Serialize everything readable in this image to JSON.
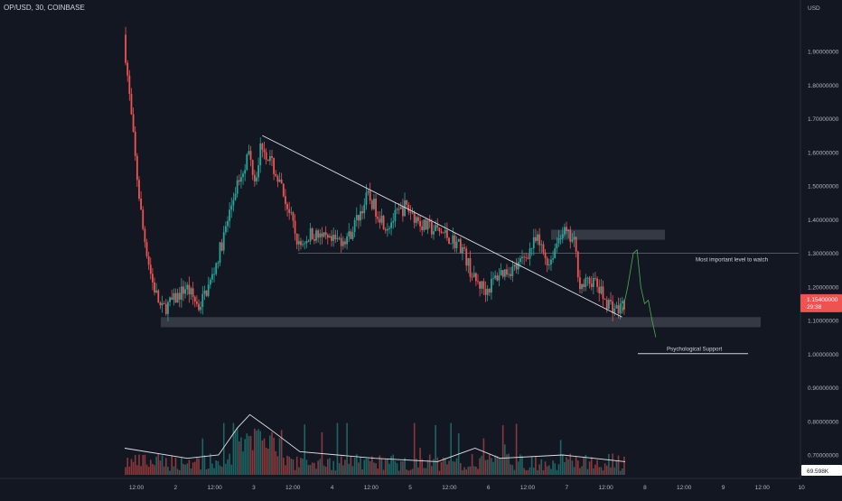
{
  "header": {
    "symbol_title": "OP/USD, 30, COINBASE"
  },
  "colors": {
    "background": "#131722",
    "up": "#26a69a",
    "down": "#ef5350",
    "axis_text": "#b2b5be",
    "trendline": "#e0e3eb",
    "zone": "#3b3f4a",
    "ma_line": "#e0e3eb",
    "projection": "#4caf50"
  },
  "price_axis": {
    "currency": "USD",
    "ticks": [
      "1.90000000",
      "1.80000000",
      "1.70000000",
      "1.60000000",
      "1.50000000",
      "1.40000000",
      "1.30000000",
      "1.20000000",
      "1.10000000",
      "1.00000000",
      "0.90000000",
      "0.80000000",
      "0.70000000"
    ],
    "current_price": "1.15400000",
    "countdown": "29:38",
    "volume_ma_value": "69.598K"
  },
  "time_axis": {
    "labels": [
      "12:00",
      "2",
      "12:00",
      "3",
      "12:00",
      "4",
      "12:00",
      "5",
      "12:00",
      "6",
      "12:00",
      "7",
      "12:00",
      "8",
      "12:00",
      "9",
      "12:00",
      "10"
    ]
  },
  "annotations": {
    "resistance_label": "Most important level to watch",
    "support_label": "Psychological Support"
  },
  "chart_data": {
    "type": "candlestick",
    "title": "OP/USD, 30, COINBASE",
    "ylim": [
      0.62,
      2.0
    ],
    "y_ticks": [
      1.9,
      1.8,
      1.7,
      1.6,
      1.5,
      1.4,
      1.3,
      1.2,
      1.1,
      1.0,
      0.9,
      0.8,
      0.7
    ],
    "x_ticks": [
      "12:00",
      "2",
      "12:00",
      "3",
      "12:00",
      "4",
      "12:00",
      "5",
      "12:00",
      "6",
      "12:00",
      "7",
      "12:00",
      "8",
      "12:00",
      "9",
      "12:00",
      "10"
    ],
    "price_path": [
      {
        "t": 0,
        "p": 1.95
      },
      {
        "t": 2,
        "p": 1.75
      },
      {
        "t": 4,
        "p": 1.55
      },
      {
        "t": 6,
        "p": 1.38
      },
      {
        "t": 9,
        "p": 1.22
      },
      {
        "t": 12,
        "p": 1.13
      },
      {
        "t": 16,
        "p": 1.16
      },
      {
        "t": 20,
        "p": 1.2
      },
      {
        "t": 24,
        "p": 1.14
      },
      {
        "t": 28,
        "p": 1.22
      },
      {
        "t": 32,
        "p": 1.35
      },
      {
        "t": 36,
        "p": 1.5
      },
      {
        "t": 40,
        "p": 1.6
      },
      {
        "t": 42,
        "p": 1.52
      },
      {
        "t": 44,
        "p": 1.63
      },
      {
        "t": 48,
        "p": 1.55
      },
      {
        "t": 52,
        "p": 1.45
      },
      {
        "t": 56,
        "p": 1.32
      },
      {
        "t": 60,
        "p": 1.36
      },
      {
        "t": 66,
        "p": 1.33
      },
      {
        "t": 72,
        "p": 1.35
      },
      {
        "t": 78,
        "p": 1.47
      },
      {
        "t": 84,
        "p": 1.38
      },
      {
        "t": 90,
        "p": 1.44
      },
      {
        "t": 96,
        "p": 1.38
      },
      {
        "t": 102,
        "p": 1.36
      },
      {
        "t": 108,
        "p": 1.32
      },
      {
        "t": 112,
        "p": 1.22
      },
      {
        "t": 116,
        "p": 1.19
      },
      {
        "t": 120,
        "p": 1.24
      },
      {
        "t": 126,
        "p": 1.26
      },
      {
        "t": 132,
        "p": 1.34
      },
      {
        "t": 136,
        "p": 1.27
      },
      {
        "t": 140,
        "p": 1.37
      },
      {
        "t": 144,
        "p": 1.33
      },
      {
        "t": 146,
        "p": 1.2
      },
      {
        "t": 150,
        "p": 1.22
      },
      {
        "t": 154,
        "p": 1.16
      },
      {
        "t": 158,
        "p": 1.13
      },
      {
        "t": 160,
        "p": 1.154
      }
    ],
    "volume_ma_path": [
      {
        "t": 0,
        "v": 0.72
      },
      {
        "t": 20,
        "v": 0.69
      },
      {
        "t": 30,
        "v": 0.7
      },
      {
        "t": 36,
        "v": 0.78
      },
      {
        "t": 40,
        "v": 0.82
      },
      {
        "t": 46,
        "v": 0.78
      },
      {
        "t": 56,
        "v": 0.71
      },
      {
        "t": 80,
        "v": 0.69
      },
      {
        "t": 100,
        "v": 0.68
      },
      {
        "t": 112,
        "v": 0.72
      },
      {
        "t": 120,
        "v": 0.69
      },
      {
        "t": 140,
        "v": 0.7
      },
      {
        "t": 160,
        "v": 0.68
      }
    ],
    "levels": [
      {
        "name": "Most important level to watch",
        "price": 1.3
      },
      {
        "name": "Psychological Support",
        "price": 1.0
      }
    ],
    "zones": [
      {
        "name": "support-zone",
        "low": 1.08,
        "high": 1.11
      },
      {
        "name": "resistance-zone",
        "low": 1.34,
        "high": 1.37
      }
    ],
    "trendline": [
      {
        "t": 44,
        "p": 1.65
      },
      {
        "t": 159,
        "p": 1.11
      }
    ],
    "projection_path": [
      {
        "t": 159,
        "p": 1.12
      },
      {
        "t": 162,
        "p": 1.2
      },
      {
        "t": 165,
        "p": 1.3
      },
      {
        "t": 167,
        "p": 1.31
      },
      {
        "t": 169,
        "p": 1.2
      },
      {
        "t": 171,
        "p": 1.15
      },
      {
        "t": 173,
        "p": 1.16
      },
      {
        "t": 175,
        "p": 1.1
      },
      {
        "t": 177,
        "p": 1.05
      }
    ],
    "legend": "none",
    "grid": false
  }
}
